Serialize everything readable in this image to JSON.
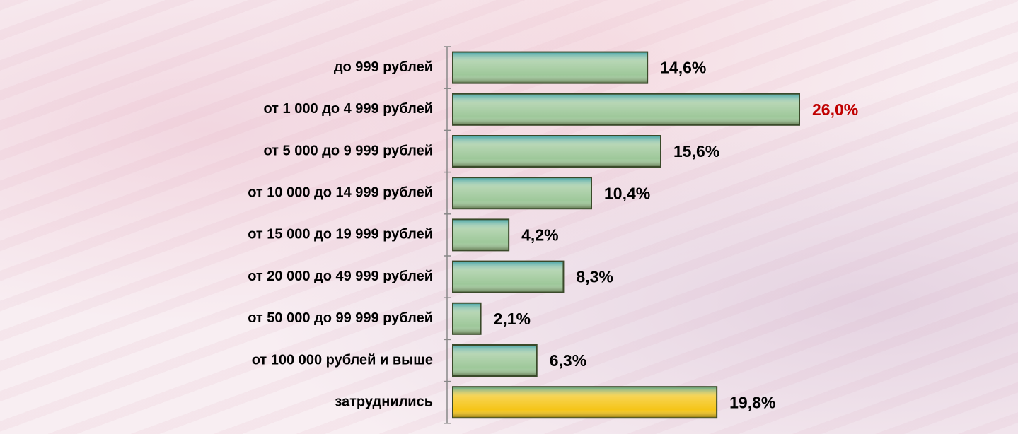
{
  "chart_data": {
    "type": "bar",
    "orientation": "horizontal",
    "categories": [
      "до 999 рублей",
      "от 1 000 до 4 999 рублей",
      "от 5 000 до 9 999 рублей",
      "от 10 000 до 14 999 рублей",
      "от 15 000 до 19 999 рублей",
      "от 20 000 до 49 999 рублей",
      "от 50 000 до 99 999 рублей",
      "от 100 000 рублей и выше",
      "затруднились"
    ],
    "values": [
      14.6,
      26.0,
      15.6,
      10.4,
      4.2,
      8.3,
      2.1,
      6.3,
      19.8
    ],
    "value_labels": [
      "14,6%",
      "26,0%",
      "15,6%",
      "10,4%",
      "4,2%",
      "8,3%",
      "2,1%",
      "6,3%",
      "19,8%"
    ],
    "colors": [
      "#9ec89a",
      "#9ec89a",
      "#9ec89a",
      "#9ec89a",
      "#9ec89a",
      "#9ec89a",
      "#9ec89a",
      "#9ec89a",
      "#f5c518"
    ],
    "value_label_colors": [
      "#000000",
      "#c00000",
      "#000000",
      "#000000",
      "#000000",
      "#000000",
      "#000000",
      "#000000",
      "#000000"
    ]
  }
}
